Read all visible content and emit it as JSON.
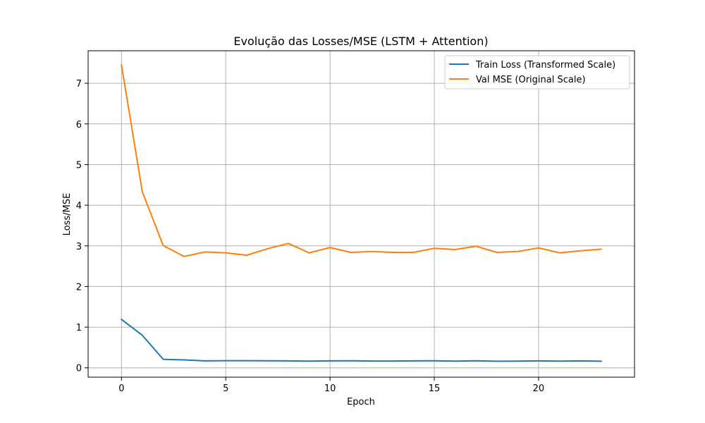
{
  "chart_data": {
    "type": "line",
    "title": "Evolução das Losses/MSE (LSTM + Attention)",
    "xlabel": "Epoch",
    "ylabel": "Loss/MSE",
    "xlim": [
      -1.6,
      24.6
    ],
    "ylim": [
      -0.23,
      7.8
    ],
    "xticks": [
      0,
      5,
      10,
      15,
      20
    ],
    "yticks": [
      0,
      1,
      2,
      3,
      4,
      5,
      6,
      7
    ],
    "grid": true,
    "legend_position": "top-right",
    "x": [
      0,
      1,
      2,
      3,
      4,
      5,
      6,
      7,
      8,
      9,
      10,
      11,
      12,
      13,
      14,
      15,
      16,
      17,
      18,
      19,
      20,
      21,
      22,
      23
    ],
    "series": [
      {
        "name": "Train Loss (Transformed Scale)",
        "color": "#1f77b4",
        "values": [
          1.19,
          0.8,
          0.21,
          0.195,
          0.17,
          0.175,
          0.175,
          0.172,
          0.17,
          0.165,
          0.17,
          0.172,
          0.168,
          0.168,
          0.17,
          0.172,
          0.165,
          0.172,
          0.162,
          0.165,
          0.17,
          0.163,
          0.17,
          0.162
        ]
      },
      {
        "name": "Val MSE (Original Scale)",
        "color": "#ff7f0e",
        "values": [
          7.45,
          4.33,
          3.01,
          2.74,
          2.85,
          2.83,
          2.77,
          2.93,
          3.06,
          2.83,
          2.96,
          2.84,
          2.86,
          2.84,
          2.84,
          2.94,
          2.91,
          2.99,
          2.84,
          2.86,
          2.95,
          2.83,
          2.88,
          2.92
        ]
      }
    ]
  }
}
